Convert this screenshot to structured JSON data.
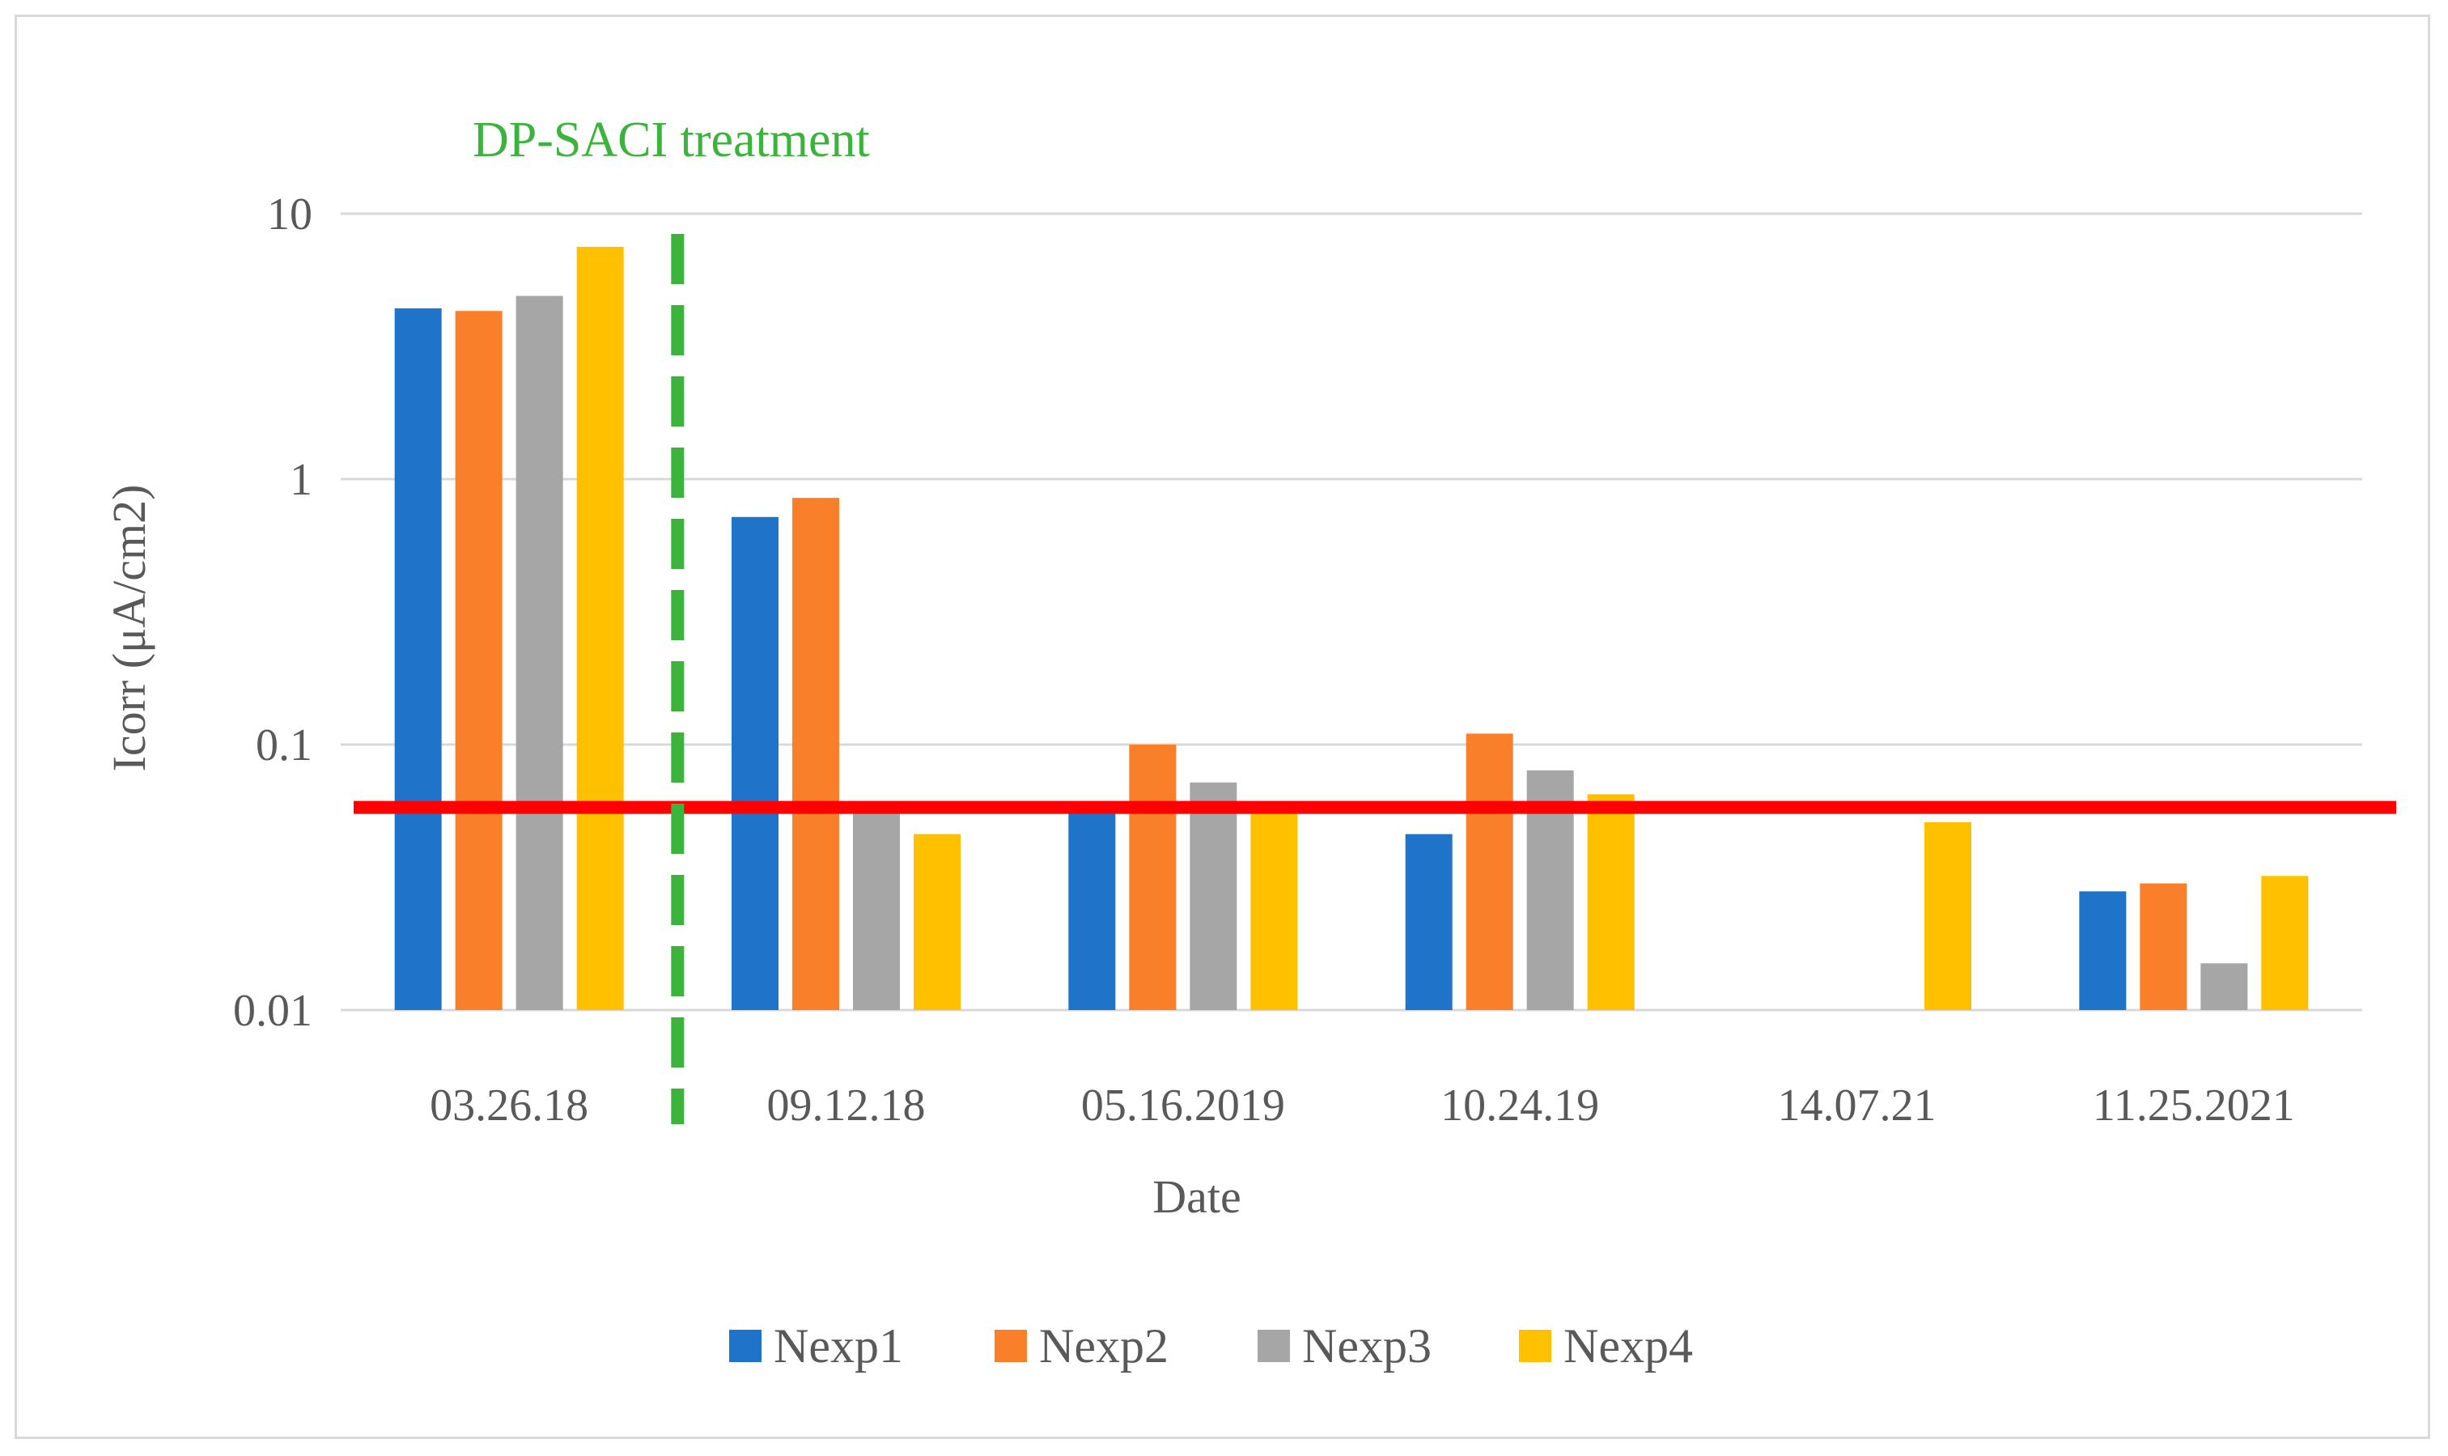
{
  "chart_data": {
    "type": "bar",
    "title": "",
    "xlabel": "Date",
    "ylabel": "Icorr (μA/cm2)",
    "yscale": "log",
    "ylim": [
      0.01,
      10
    ],
    "yticks": [
      {
        "value": 10,
        "label": "10"
      },
      {
        "value": 1,
        "label": "1"
      },
      {
        "value": 0.1,
        "label": "0.1"
      },
      {
        "value": 0.01,
        "label": "0.01"
      }
    ],
    "grid": true,
    "legend_position": "bottom",
    "categories": [
      "03.26.18",
      "09.12.18",
      "05.16.2019",
      "10.24.19",
      "14.07.21",
      "11.25.2021"
    ],
    "series": [
      {
        "name": "Nexp1",
        "color": "#1f74c9",
        "values": [
          4.4,
          0.72,
          0.057,
          0.046,
          null,
          0.028
        ]
      },
      {
        "name": "Nexp2",
        "color": "#f97f2a",
        "values": [
          4.3,
          0.85,
          0.1,
          0.11,
          null,
          0.03
        ]
      },
      {
        "name": "Nexp3",
        "color": "#a6a6a6",
        "values": [
          4.9,
          0.057,
          0.072,
          0.08,
          null,
          0.015
        ]
      },
      {
        "name": "Nexp4",
        "color": "#ffc000",
        "values": [
          7.5,
          0.046,
          0.057,
          0.065,
          0.051,
          0.032
        ]
      }
    ],
    "threshold_line": {
      "value": 0.058,
      "color": "#ff0000"
    },
    "annotations": [
      {
        "text": "DP-SACI treatment",
        "color": "#3cb33c",
        "style": "dashed-vertical-line",
        "after_category": "03.26.18"
      }
    ]
  }
}
